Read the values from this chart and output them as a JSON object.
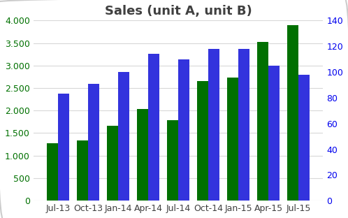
{
  "categories": [
    "Jul-13",
    "Oct-13",
    "Jan-14",
    "Apr-14",
    "Jul-14",
    "Oct-14",
    "Jan-15",
    "Apr-15",
    "Jul-15"
  ],
  "green_values": [
    1270,
    1340,
    1660,
    2040,
    1790,
    2660,
    2730,
    3530,
    3900
  ],
  "blue_values": [
    83,
    91,
    100,
    114,
    110,
    118,
    118,
    105,
    98
  ],
  "title": "Sales (unit A, unit B)",
  "left_ylim": [
    0,
    4000
  ],
  "right_ylim": [
    0,
    140
  ],
  "left_yticks": [
    0,
    500,
    1000,
    1500,
    2000,
    2500,
    3000,
    3500,
    4000
  ],
  "right_yticks": [
    0,
    20,
    40,
    60,
    80,
    100,
    120,
    140
  ],
  "green_color": "#007000",
  "blue_color": "#3333dd",
  "title_color": "#404040",
  "left_tick_color": "#007000",
  "right_tick_color": "#0000ee",
  "bg_color": "#ffffff",
  "plot_bg_color": "#ffffff",
  "bar_width": 0.38,
  "grid_color": "#d8d8d8",
  "title_fontsize": 13,
  "tick_fontsize": 9
}
